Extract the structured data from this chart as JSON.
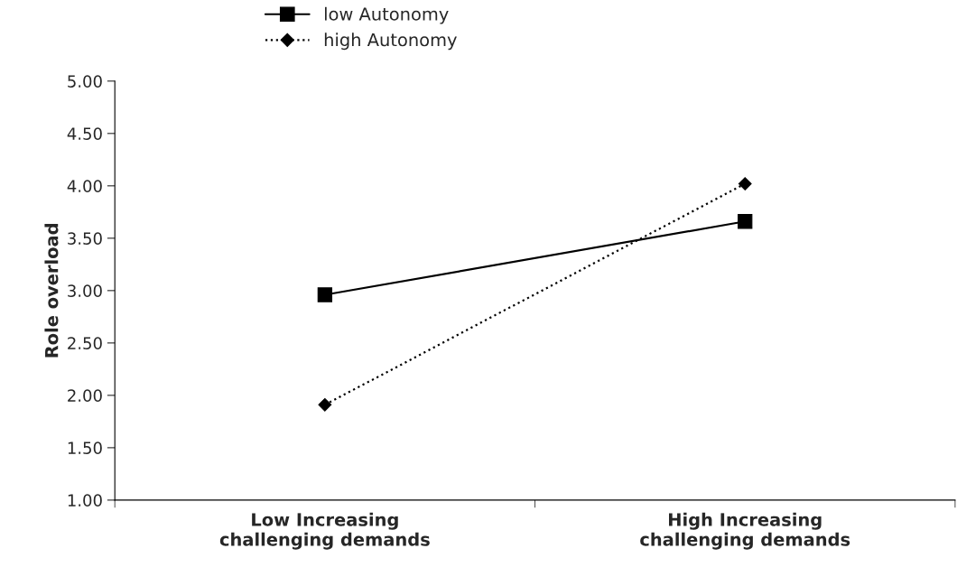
{
  "chart_data": {
    "type": "line",
    "ylabel": "Role overload",
    "categories": [
      "Low Increasing\nchallenging demands",
      "High Increasing\nchallenging demands"
    ],
    "series": [
      {
        "name": "low Autonomy",
        "color": "#000000",
        "values": [
          2.96,
          3.66
        ],
        "marker": "square",
        "line_style": "solid"
      },
      {
        "name": "high Autonomy",
        "color": "#000000",
        "values": [
          1.91,
          4.02
        ],
        "marker": "diamond",
        "line_style": "dotted"
      }
    ],
    "ylim": [
      1,
      5
    ],
    "yticks": [
      {
        "value": 1,
        "label": "1.00"
      },
      {
        "value": 1.5,
        "label": "1.50"
      },
      {
        "value": 2,
        "label": "2.00"
      },
      {
        "value": 2.5,
        "label": "2.50"
      },
      {
        "value": 3,
        "label": "3.00"
      },
      {
        "value": 3.5,
        "label": "3.50"
      },
      {
        "value": 4,
        "label": "4.00"
      },
      {
        "value": 4.5,
        "label": "4.50"
      },
      {
        "value": 5,
        "label": "5.00"
      }
    ],
    "grid": false,
    "legend": "top"
  }
}
